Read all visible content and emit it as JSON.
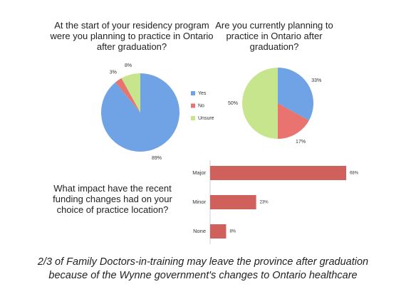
{
  "chart_data": [
    {
      "type": "pie",
      "title": "At the start of your residency program were you planning to practice in Ontario after graduation?",
      "categories": [
        "Yes",
        "No",
        "Unsure"
      ],
      "values": [
        89,
        3,
        8
      ],
      "value_labels": [
        "89%",
        "3%",
        "8%"
      ],
      "colors": [
        "#6fa3e6",
        "#e8736f",
        "#c6e58c"
      ],
      "legend": true
    },
    {
      "type": "pie",
      "title": "Are you currently planning to practice in Ontario after graduation?",
      "categories": [
        "Yes",
        "No",
        "Unsure"
      ],
      "values": [
        33,
        17,
        50
      ],
      "value_labels": [
        "33%",
        "17%",
        "50%"
      ],
      "colors": [
        "#6fa3e6",
        "#e8736f",
        "#c6e58c"
      ],
      "legend": false
    },
    {
      "type": "hbar",
      "title": "What impact have the recent funding changes had on your choice of practice location?",
      "categories": [
        "Major",
        "Minor",
        "None"
      ],
      "values": [
        68,
        23,
        8
      ],
      "value_labels": [
        "68%",
        "23%",
        "8%"
      ],
      "color": "#d0605c"
    }
  ],
  "caption": [
    "2/3 of Family Doctors-in-training may leave the province after graduation",
    "because of the Wynne government's changes to Ontario healthcare"
  ]
}
